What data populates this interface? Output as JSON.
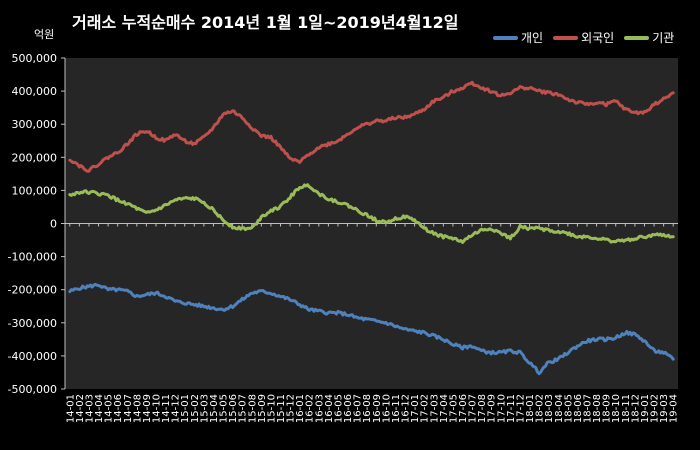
{
  "chart_data": {
    "type": "line",
    "title": "거래소 누적순매수 2014년 1월 1일~2019년4월12일",
    "unit_label": "억원",
    "ylim": [
      -500000,
      500000
    ],
    "yticks": [
      500000,
      400000,
      300000,
      200000,
      100000,
      0,
      -100000,
      -200000,
      -300000,
      -400000,
      -500000
    ],
    "ytick_labels": [
      "500,000",
      "400,000",
      "300,000",
      "200,000",
      "100,000",
      "0",
      "-100,000",
      "-200,000",
      "-300,000",
      "-400,000",
      "-500,000"
    ],
    "grid": false,
    "legend_position": "top-right",
    "x": [
      "14-01",
      "14-02",
      "14-03",
      "14-04",
      "14-05",
      "14-06",
      "14-07",
      "14-08",
      "14-09",
      "14-10",
      "14-11",
      "14-12",
      "15-01",
      "15-02",
      "15-03",
      "15-04",
      "15-05",
      "15-06",
      "15-07",
      "15-08",
      "15-09",
      "15-10",
      "15-11",
      "15-12",
      "16-01",
      "16-02",
      "16-03",
      "16-04",
      "16-05",
      "16-06",
      "16-07",
      "16-08",
      "16-09",
      "16-10",
      "16-11",
      "16-12",
      "17-01",
      "17-02",
      "17-03",
      "17-04",
      "17-05",
      "17-06",
      "17-07",
      "17-08",
      "17-09",
      "17-10",
      "17-11",
      "17-12",
      "18-01",
      "18-02",
      "18-03",
      "18-04",
      "18-05",
      "18-06",
      "18-07",
      "18-08",
      "18-09",
      "18-10",
      "18-11",
      "18-12",
      "19-01",
      "19-02",
      "19-03",
      "19-04"
    ],
    "series": [
      {
        "name": "개인",
        "color": "#4f81bd",
        "values": [
          -205000,
          -195000,
          -190000,
          -185000,
          -200000,
          -200000,
          -205000,
          -220000,
          -215000,
          -210000,
          -220000,
          -235000,
          -240000,
          -245000,
          -250000,
          -255000,
          -260000,
          -250000,
          -230000,
          -210000,
          -205000,
          -210000,
          -220000,
          -230000,
          -245000,
          -260000,
          -265000,
          -270000,
          -270000,
          -275000,
          -285000,
          -290000,
          -295000,
          -300000,
          -310000,
          -320000,
          -325000,
          -330000,
          -340000,
          -350000,
          -365000,
          -375000,
          -370000,
          -385000,
          -390000,
          -390000,
          -385000,
          -390000,
          -420000,
          -450000,
          -420000,
          -410000,
          -390000,
          -370000,
          -355000,
          -350000,
          -350000,
          -345000,
          -330000,
          -335000,
          -355000,
          -385000,
          -390000,
          -410000
        ]
      },
      {
        "name": "외국인",
        "color": "#c0504d",
        "values": [
          195000,
          175000,
          160000,
          180000,
          200000,
          215000,
          240000,
          270000,
          280000,
          260000,
          250000,
          270000,
          250000,
          240000,
          260000,
          290000,
          330000,
          340000,
          320000,
          290000,
          265000,
          260000,
          230000,
          195000,
          185000,
          210000,
          230000,
          240000,
          250000,
          270000,
          290000,
          300000,
          310000,
          310000,
          320000,
          320000,
          330000,
          345000,
          370000,
          380000,
          400000,
          410000,
          425000,
          410000,
          400000,
          385000,
          395000,
          410000,
          410000,
          400000,
          395000,
          390000,
          375000,
          365000,
          360000,
          365000,
          360000,
          370000,
          345000,
          335000,
          335000,
          360000,
          375000,
          395000
        ]
      },
      {
        "name": "기관",
        "color": "#9bbb59",
        "values": [
          85000,
          95000,
          95000,
          90000,
          85000,
          70000,
          60000,
          45000,
          30000,
          40000,
          55000,
          70000,
          75000,
          75000,
          65000,
          40000,
          10000,
          -10000,
          -15000,
          -15000,
          20000,
          40000,
          50000,
          80000,
          110000,
          115000,
          90000,
          75000,
          65000,
          55000,
          40000,
          25000,
          10000,
          5000,
          15000,
          20000,
          10000,
          -15000,
          -30000,
          -40000,
          -45000,
          -55000,
          -35000,
          -20000,
          -15000,
          -30000,
          -45000,
          -10000,
          -15000,
          -15000,
          -20000,
          -25000,
          -30000,
          -40000,
          -40000,
          -45000,
          -50000,
          -55000,
          -50000,
          -45000,
          -40000,
          -35000,
          -35000,
          -40000
        ]
      }
    ]
  }
}
